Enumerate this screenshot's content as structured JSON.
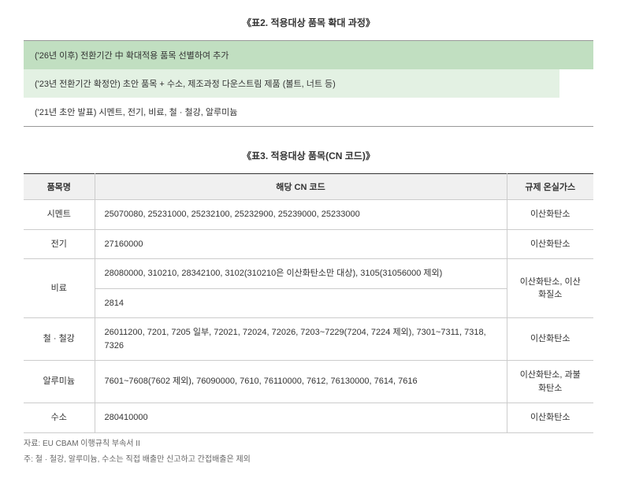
{
  "table2": {
    "title": "《표2. 적용대상 품목 확대 과정》",
    "rows": [
      "('26년 이후) 전환기간 中 확대적용 품목 선별하여 추가",
      "('23년 전환기간 확정안) 초안 품목 + 수소, 제조과정 다운스트림 제품 (볼트, 너트 등)",
      "('21년 초안 발표) 시멘트, 전기, 비료, 철 · 철강, 알루미늄"
    ]
  },
  "table3": {
    "title": "《표3. 적용대상 품목(CN 코드)》",
    "headers": {
      "name": "품목명",
      "cn": "해당 CN 코드",
      "gas": "규제 온실가스"
    },
    "rows": {
      "cement": {
        "name": "시멘트",
        "cn": "25070080, 25231000, 25232100, 25232900, 25239000, 25233000",
        "gas": "이산화탄소"
      },
      "electricity": {
        "name": "전기",
        "cn": "27160000",
        "gas": "이산화탄소"
      },
      "fertilizer": {
        "name": "비료",
        "cn1": "28080000, 310210, 28342100, 3102(310210은 이산화탄소만 대상), 3105(31056000 제외)",
        "cn2": "2814",
        "gas": "이산화탄소, 이산화질소"
      },
      "steel": {
        "name": "철 · 철강",
        "cn": "26011200, 7201, 7205 일부, 72021, 72024, 72026, 7203~7229(7204, 7224 제외), 7301~7311, 7318, 7326",
        "gas": "이산화탄소"
      },
      "aluminum": {
        "name": "알루미늄",
        "cn": "7601~7608(7602 제외), 76090000, 7610, 76110000, 7612, 76130000, 7614, 7616",
        "gas": "이산화탄소, 과불화탄소"
      },
      "hydrogen": {
        "name": "수소",
        "cn": "280410000",
        "gas": "이산화탄소"
      }
    }
  },
  "footnotes": {
    "source": "자료: EU CBAM 이행규칙 부속서 II",
    "note": "주: 철 · 철강, 알루미늄, 수소는 직접 배출만 신고하고 간접배출은 제외"
  }
}
